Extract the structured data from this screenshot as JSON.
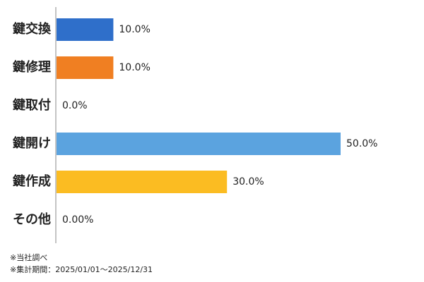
{
  "chart_data": {
    "type": "barh",
    "categories": [
      "鍵交換",
      "鍵修理",
      "鍵取付",
      "鍵開け",
      "鍵作成",
      "その他"
    ],
    "values": [
      10,
      10,
      0,
      50,
      30,
      0
    ],
    "value_labels": [
      "10.0%",
      "10.0%",
      "0.0%",
      "50.0%",
      "30.0%",
      "0.00%"
    ],
    "colors": [
      "#2f6fca",
      "#f07f22",
      null,
      "#5ba3df",
      "#fbbc22",
      null
    ],
    "xlim": [
      0,
      50
    ],
    "notes": [
      "※当社調べ",
      "※集計期間：2025/01/01～2025/12/31"
    ]
  }
}
